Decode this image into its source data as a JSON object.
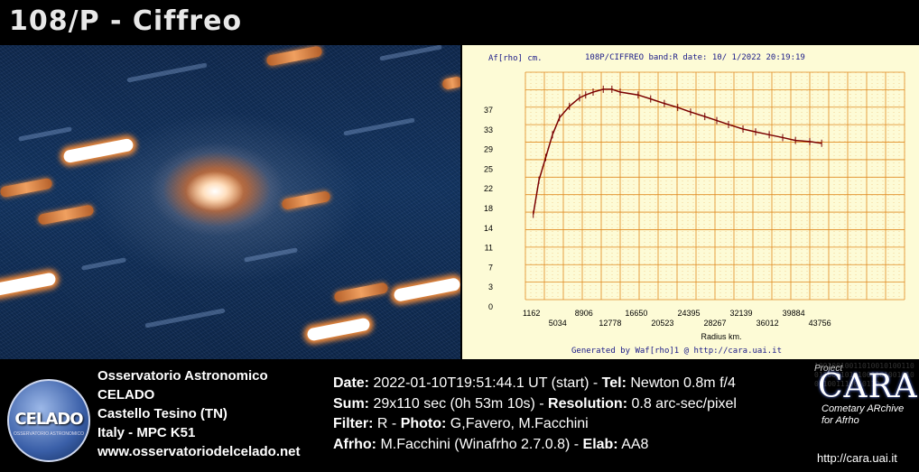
{
  "title": "108/P - Ciffreo",
  "graph": {
    "y_axis_label": "Af[rho] cm.",
    "header": "108P/CIFFREO band:R date: 10/ 1/2022 20:19:19",
    "x_axis_label": "Radius km.",
    "footer": "Generated by Waf[rho]1 @ http://cara.uai.it"
  },
  "chart_data": {
    "type": "line",
    "xlabel": "Radius km.",
    "ylabel": "Af[rho] cm.",
    "y_ticks": [
      "0",
      "3",
      "7",
      "11",
      "14",
      "18",
      "22",
      "25",
      "29",
      "33",
      "37"
    ],
    "x_ticks_top": [
      "1162",
      "8906",
      "16650",
      "24395",
      "32139",
      "39884"
    ],
    "x_ticks_bottom": [
      "5034",
      "12778",
      "20523",
      "28267",
      "36012",
      "43756"
    ],
    "xlim": [
      0,
      56000
    ],
    "ylim": [
      0,
      40
    ],
    "series": [
      {
        "x": [
          1162,
          2000,
          3000,
          4000,
          5034,
          6500,
          8000,
          8906,
          10000,
          11500,
          12778,
          14000,
          16650,
          18500,
          20523,
          22500,
          24395,
          26500,
          28267,
          30000,
          32139,
          34000,
          36012,
          38000,
          39884,
          42000,
          43756
        ],
        "y": [
          15.0,
          21.0,
          25.0,
          29.0,
          32.0,
          34.0,
          35.5,
          36.0,
          36.5,
          37.0,
          37.0,
          36.5,
          36.0,
          35.3,
          34.5,
          33.8,
          33.0,
          32.2,
          31.5,
          30.8,
          30.0,
          29.5,
          29.0,
          28.5,
          28.0,
          27.8,
          27.5
        ]
      }
    ],
    "grid": true
  },
  "observatory": {
    "line1": "Osservatorio Astronomico",
    "line2": "CELADO",
    "line3": "Castello Tesino (TN)",
    "line4": "Italy - MPC K51",
    "line5": "www.osservatoriodelcelado.net"
  },
  "logo": {
    "text": "CELADO",
    "sub": "OSSERVATORIO ASTRONOMICO"
  },
  "info": {
    "date_label": "Date:",
    "date_value": "2022-01-10T19:51:44.1 UT (start)",
    "tel_label": "Tel:",
    "tel_value": "Newton 0.8m f/4",
    "sum_label": "Sum:",
    "sum_value": "29x110 sec (0h 53m 10s)",
    "res_label": "Resolution:",
    "res_value": "0.8 arc-sec/pixel",
    "filter_label": "Filter:",
    "filter_value": "R",
    "photo_label": "Photo:",
    "photo_value": "G,Favero, M.Facchini",
    "afrho_label": "Afrho:",
    "afrho_value": "M.Facchini (Winafrho 2.7.0.8)",
    "elab_label": "Elab:",
    "elab_value": "AA8"
  },
  "cara": {
    "project": "Project",
    "word": "CARA",
    "sub1": "Cometary ARchive",
    "sub2": "for Afrho",
    "url": "http://cara.uai.it",
    "binary": "1001001001101001010011001100110101001101001010011001110010110"
  },
  "colors": {
    "curve": "#7a0000",
    "grid": "#e08a20",
    "accent_orange": "#f08a3a"
  }
}
